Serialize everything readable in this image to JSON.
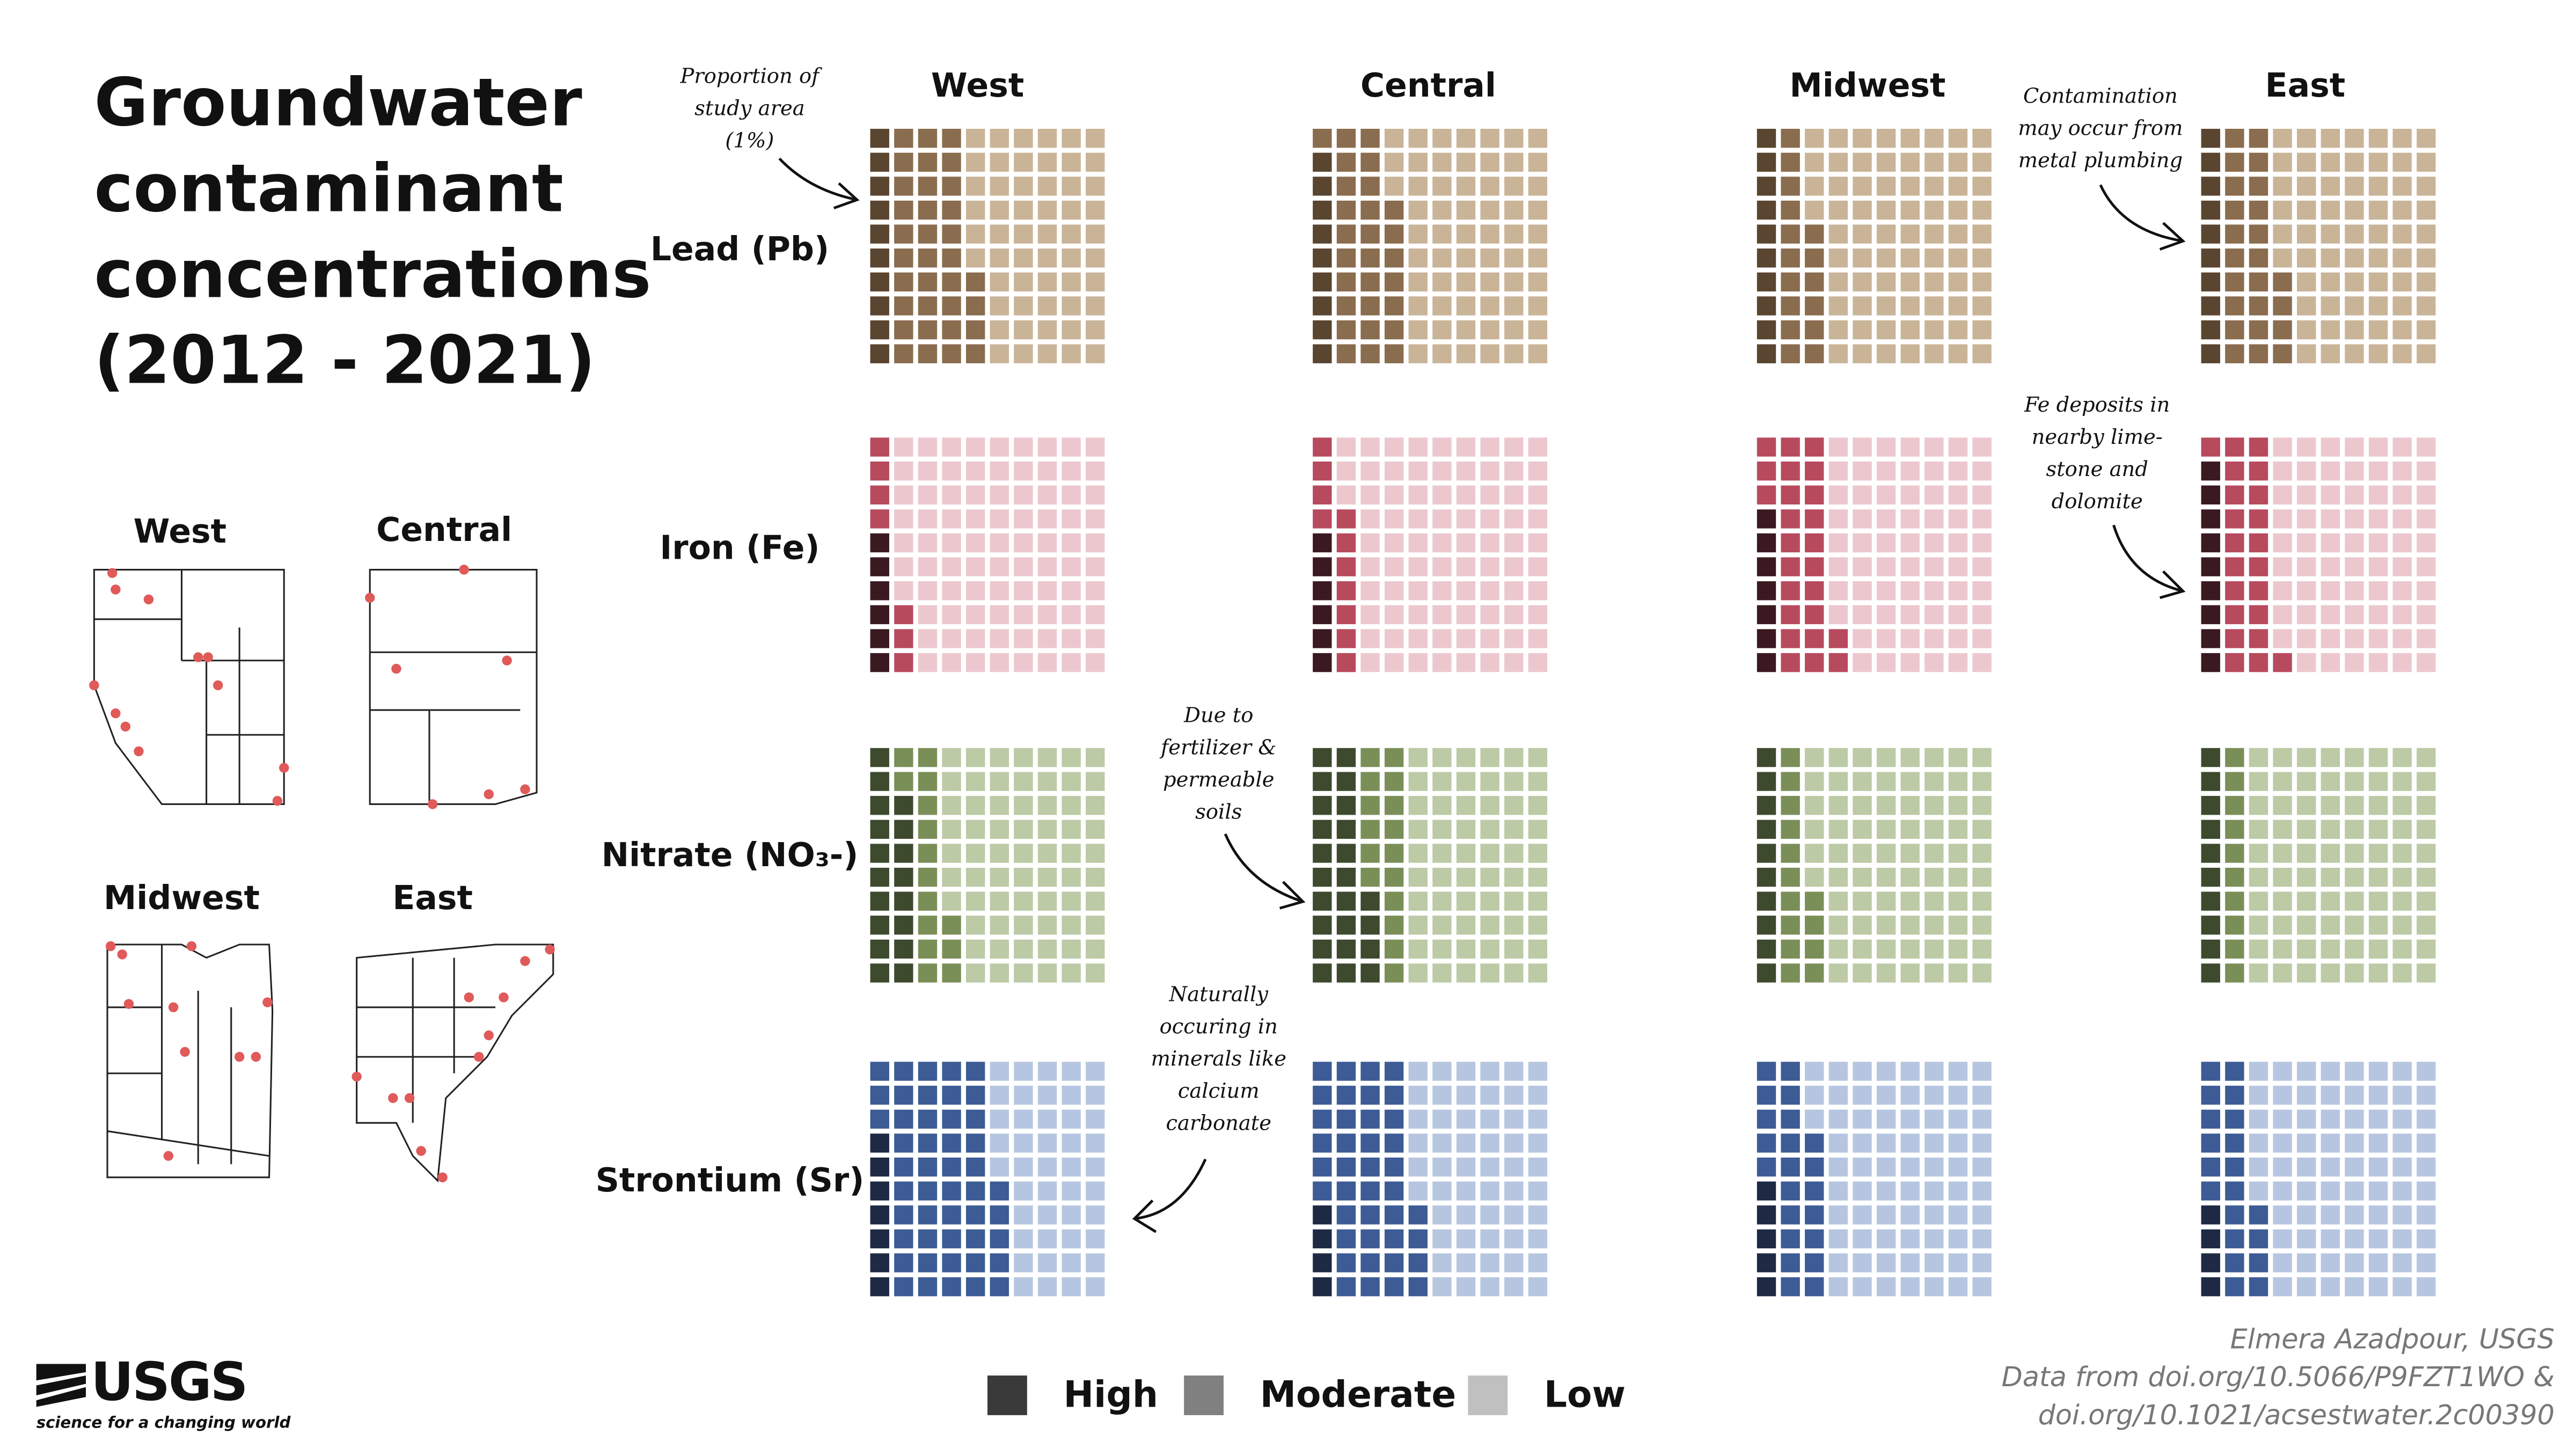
{
  "title_lines": [
    "Groundwater",
    "contaminant",
    "concentrations",
    "(2012 - 2021)"
  ],
  "column_labels": [
    "West",
    "Central",
    "Midwest",
    "East"
  ],
  "row_labels": [
    "Lead (Pb)",
    "Iron (Fe)",
    "Nitrate (NO₃-)",
    "Strontium (Sr)"
  ],
  "map_labels": [
    "West",
    "Central",
    "Midwest",
    "East"
  ],
  "annotations": [
    {
      "lines": [
        "Proportion of",
        "study area",
        "(1%)"
      ]
    },
    {
      "lines": [
        "Contamination",
        "may occur from",
        "metal plumbing"
      ]
    },
    {
      "lines": [
        "Fe deposits in",
        "nearby lime-",
        "stone and",
        "dolomite"
      ]
    },
    {
      "lines": [
        "Due to",
        "fertilizer &",
        "permeable",
        "soils"
      ]
    },
    {
      "lines": [
        "Naturally",
        "occuring in",
        "minerals like",
        "calcium",
        "carbonate"
      ]
    }
  ],
  "legend": {
    "items": [
      {
        "label": "High",
        "color": "#3a3a3a"
      },
      {
        "label": "Moderate",
        "color": "#808080"
      },
      {
        "label": "Low",
        "color": "#c0c0c0"
      }
    ]
  },
  "credits": [
    "Elmera Azadpour, USGS",
    "Data from doi.org/10.5066/P9FZT1WO &",
    "doi.org/10.1021/acsestwater.2c00390"
  ],
  "logo": {
    "name": "USGS",
    "tagline": "science for a changing world"
  },
  "chart_data": [
    {
      "type": "waffle",
      "values": [
        10,
        34,
        56
      ],
      "colors": [
        "#5a4530",
        "#8a6c4e",
        "#c9b498"
      ]
    },
    {
      "type": "waffle",
      "values": [
        9,
        28,
        63
      ],
      "colors": [
        "#5a4530",
        "#8a6c4e",
        "#c9b498"
      ]
    },
    {
      "type": "waffle",
      "values": [
        10,
        16,
        74
      ],
      "colors": [
        "#5a4530",
        "#8a6c4e",
        "#c9b498"
      ]
    },
    {
      "type": "waffle",
      "values": [
        10,
        24,
        66
      ],
      "colors": [
        "#5a4530",
        "#8a6c4e",
        "#c9b498"
      ]
    },
    {
      "type": "waffle",
      "values": [
        6,
        7,
        87
      ],
      "colors": [
        "#3a1a20",
        "#b84a5e",
        "#ecc8ce"
      ]
    },
    {
      "type": "waffle",
      "values": [
        6,
        11,
        83
      ],
      "colors": [
        "#3a1a20",
        "#b84a5e",
        "#ecc8ce"
      ]
    },
    {
      "type": "waffle",
      "values": [
        7,
        25,
        68
      ],
      "colors": [
        "#3a1a20",
        "#b84a5e",
        "#ecc8ce"
      ]
    },
    {
      "type": "waffle",
      "values": [
        9,
        22,
        69
      ],
      "colors": [
        "#3a1a20",
        "#b84a5e",
        "#ecc8ce"
      ]
    },
    {
      "type": "waffle",
      "values": [
        18,
        15,
        67
      ],
      "colors": [
        "#3d4a2e",
        "#7a8f58",
        "#bccaa5"
      ]
    },
    {
      "type": "waffle",
      "values": [
        24,
        16,
        60
      ],
      "colors": [
        "#3d4a2e",
        "#7a8f58",
        "#bccaa5"
      ]
    },
    {
      "type": "waffle",
      "values": [
        10,
        14,
        76
      ],
      "colors": [
        "#3d4a2e",
        "#7a8f58",
        "#bccaa5"
      ]
    },
    {
      "type": "waffle",
      "values": [
        10,
        10,
        80
      ],
      "colors": [
        "#3d4a2e",
        "#7a8f58",
        "#bccaa5"
      ]
    },
    {
      "type": "waffle",
      "values": [
        7,
        48,
        45
      ],
      "colors": [
        "#1e2a44",
        "#3d5c95",
        "#b7c6e0"
      ]
    },
    {
      "type": "waffle",
      "values": [
        4,
        40,
        56
      ],
      "colors": [
        "#1e2a44",
        "#3d5c95",
        "#b7c6e0"
      ]
    },
    {
      "type": "waffle",
      "values": [
        5,
        22,
        73
      ],
      "colors": [
        "#1e2a44",
        "#3d5c95",
        "#b7c6e0"
      ]
    },
    {
      "type": "waffle",
      "values": [
        4,
        20,
        76
      ],
      "colors": [
        "#1e2a44",
        "#3d5c95",
        "#b7c6e0"
      ]
    }
  ]
}
